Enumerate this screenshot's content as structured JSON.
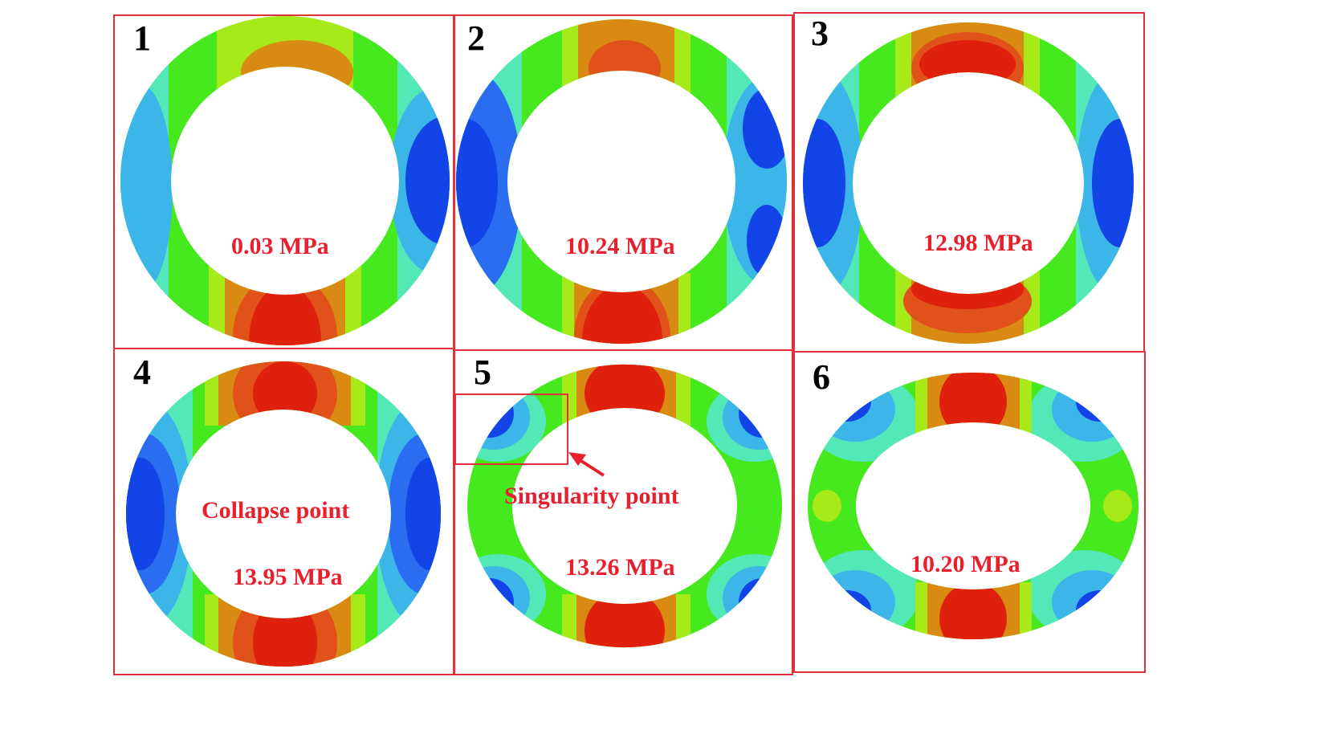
{
  "figure": {
    "frame_color": "#e0303c",
    "label_color": "#e8202e",
    "contour_colors": {
      "blue": "#1244e8",
      "mid_blue": "#2a6df0",
      "light_blue": "#3cb6e8",
      "cyan_green": "#52e8b8",
      "green": "#46e81e",
      "yellow_green": "#a6ea1a",
      "orange": "#d98a12",
      "orange_red": "#e0521a",
      "red": "#de200c"
    },
    "panels": [
      {
        "number": "1",
        "pressure": "0.03 MPa"
      },
      {
        "number": "2",
        "pressure": "10.24 MPa"
      },
      {
        "number": "3",
        "pressure": "12.98 MPa"
      },
      {
        "number": "4",
        "pressure": "13.95 MPa",
        "annotation": "Collapse point"
      },
      {
        "number": "5",
        "pressure": "13.26 MPa",
        "annotation": "Singularity point"
      },
      {
        "number": "6",
        "pressure": "10.20 MPa"
      }
    ]
  }
}
